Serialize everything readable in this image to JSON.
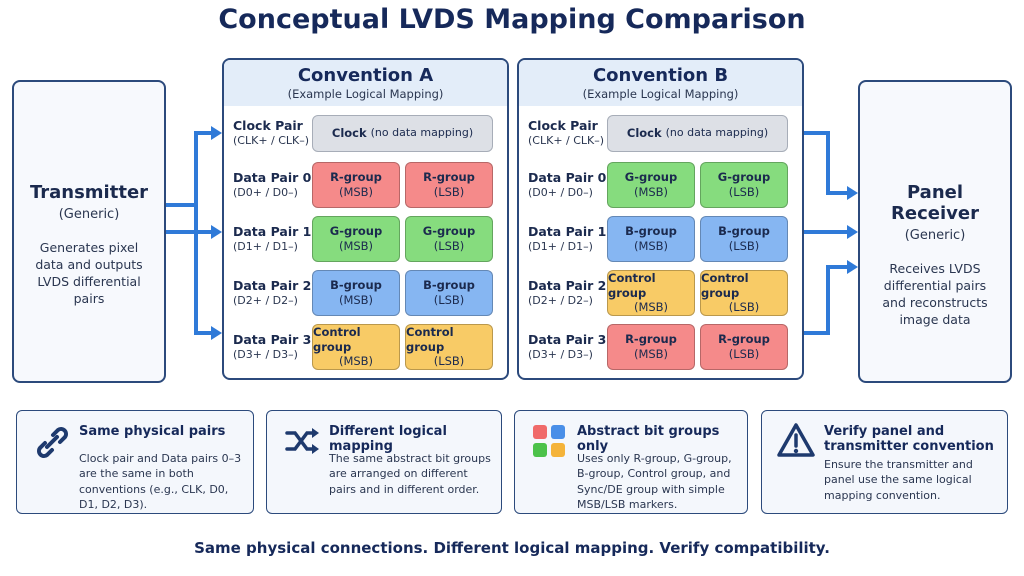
{
  "title": "Conceptual LVDS Mapping Comparison",
  "transmitter": {
    "title": "Transmitter",
    "subtitle": "(Generic)",
    "description": "Generates pixel data and outputs LVDS differential pairs"
  },
  "receiver": {
    "title": "Panel Receiver",
    "subtitle": "(Generic)",
    "description": "Receives LVDS differential pairs and reconstructs image data"
  },
  "conventions": [
    {
      "title": "Convention A",
      "subtitle": "(Example Logical Mapping)",
      "clock": {
        "pair": "Clock Pair",
        "pins": "(CLK+ / CLK–)",
        "label": "Clock",
        "note": "(no data mapping)"
      },
      "rows": [
        {
          "pair": "Data Pair 0",
          "pins": "(D0+ / D0–)",
          "cells": [
            {
              "group": "R-group",
              "bit": "(MSB)",
              "color": "#f58a8a"
            },
            {
              "group": "R-group",
              "bit": "(LSB)",
              "color": "#f58a8a"
            }
          ]
        },
        {
          "pair": "Data Pair 1",
          "pins": "(D1+ / D1–)",
          "cells": [
            {
              "group": "G-group",
              "bit": "(MSB)",
              "color": "#86dc7e"
            },
            {
              "group": "G-group",
              "bit": "(LSB)",
              "color": "#86dc7e"
            }
          ]
        },
        {
          "pair": "Data Pair 2",
          "pins": "(D2+ / D2–)",
          "cells": [
            {
              "group": "B-group",
              "bit": "(MSB)",
              "color": "#86b6f2"
            },
            {
              "group": "B-group",
              "bit": "(LSB)",
              "color": "#86b6f2"
            }
          ]
        },
        {
          "pair": "Data Pair 3",
          "pins": "(D3+ / D3–)",
          "cells": [
            {
              "group": "Control group",
              "bit": "(MSB)",
              "color": "#f8cb66"
            },
            {
              "group": "Control group",
              "bit": "(LSB)",
              "color": "#f8cb66"
            }
          ]
        }
      ]
    },
    {
      "title": "Convention B",
      "subtitle": "(Example Logical Mapping)",
      "clock": {
        "pair": "Clock Pair",
        "pins": "(CLK+ / CLK–)",
        "label": "Clock",
        "note": "(no data mapping)"
      },
      "rows": [
        {
          "pair": "Data Pair 0",
          "pins": "(D0+ / D0–)",
          "cells": [
            {
              "group": "G-group",
              "bit": "(MSB)",
              "color": "#86dc7e"
            },
            {
              "group": "G-group",
              "bit": "(LSB)",
              "color": "#86dc7e"
            }
          ]
        },
        {
          "pair": "Data Pair 1",
          "pins": "(D1+ / D1–)",
          "cells": [
            {
              "group": "B-group",
              "bit": "(MSB)",
              "color": "#86b6f2"
            },
            {
              "group": "B-group",
              "bit": "(LSB)",
              "color": "#86b6f2"
            }
          ]
        },
        {
          "pair": "Data Pair 2",
          "pins": "(D2+ / D2–)",
          "cells": [
            {
              "group": "Control group",
              "bit": "(MSB)",
              "color": "#f8cb66"
            },
            {
              "group": "Control group",
              "bit": "(LSB)",
              "color": "#f8cb66"
            }
          ]
        },
        {
          "pair": "Data Pair 3",
          "pins": "(D3+ / D3–)",
          "cells": [
            {
              "group": "R-group",
              "bit": "(MSB)",
              "color": "#f58a8a"
            },
            {
              "group": "R-group",
              "bit": "(LSB)",
              "color": "#f58a8a"
            }
          ]
        }
      ]
    }
  ],
  "cards": [
    {
      "title": "Same physical pairs",
      "text": "Clock pair and Data pairs 0–3 are the same in both conventions (e.g., CLK, D0, D1, D2, D3)."
    },
    {
      "title": "Different logical mapping",
      "text": "The same abstract bit groups are arranged on different pairs and in different order."
    },
    {
      "title": "Abstract bit groups only",
      "text": "Uses only R-group, G-group, B-group, Control group, and Sync/DE group with simple MSB/LSB markers."
    },
    {
      "title": "Verify panel and transmitter convention",
      "text": "Ensure the transmitter and panel use the same logical mapping convention."
    }
  ],
  "footer": "Same physical connections. Different logical mapping. Verify compatibility."
}
